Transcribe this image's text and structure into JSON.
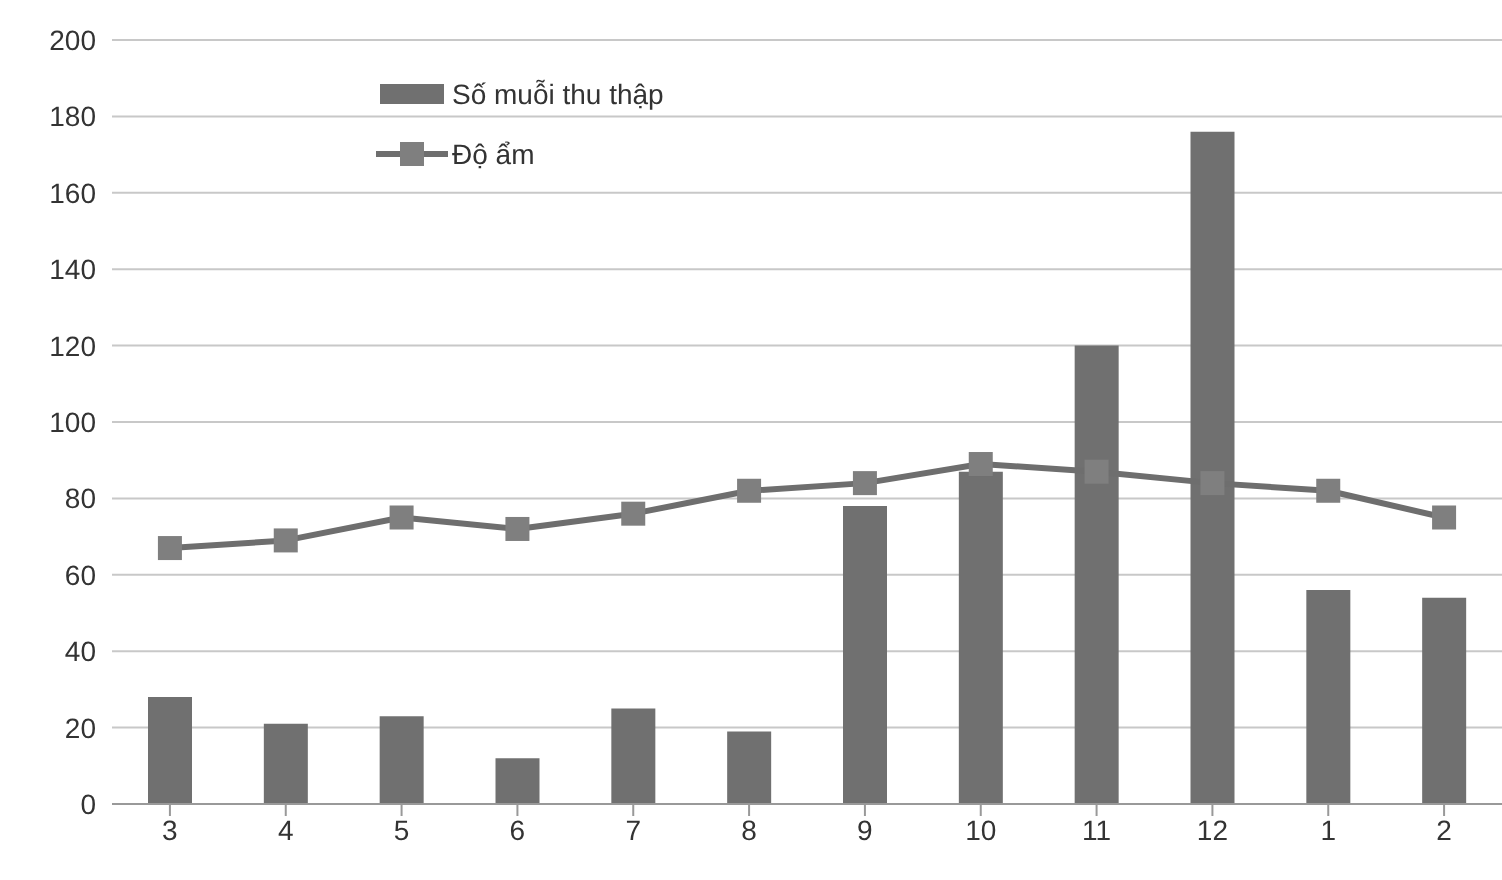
{
  "chart_data": {
    "type": "bar",
    "categories": [
      "3",
      "4",
      "5",
      "6",
      "7",
      "8",
      "9",
      "10",
      "11",
      "12",
      "1",
      "2"
    ],
    "series": [
      {
        "name": "Số muỗi thu thập",
        "color": "#707070",
        "values": [
          28,
          21,
          23,
          12,
          25,
          19,
          78,
          87,
          120,
          176,
          56,
          54
        ]
      },
      {
        "name": "Độ ẩm",
        "type": "line",
        "color": "#6e6e6e",
        "values": [
          67,
          69,
          75,
          72,
          76,
          82,
          84,
          89,
          87,
          84,
          82,
          75
        ]
      }
    ],
    "ylim": [
      0,
      200
    ],
    "yticks": [
      0,
      20,
      40,
      60,
      80,
      100,
      120,
      140,
      160,
      180,
      200
    ],
    "grid": "y",
    "legend": "top left",
    "marker": "square"
  }
}
